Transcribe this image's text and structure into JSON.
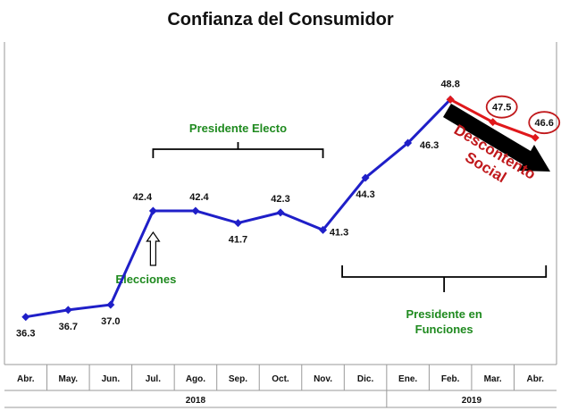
{
  "chart_data": {
    "type": "line",
    "title": "Confianza del Consumidor",
    "categories": [
      "Abr.",
      "May.",
      "Jun.",
      "Jul.",
      "Ago.",
      "Sep.",
      "Oct.",
      "Nov.",
      "Dic.",
      "Ene.",
      "Feb.",
      "Mar.",
      "Abr."
    ],
    "years": [
      {
        "label": "2018",
        "from": 0,
        "to": 8
      },
      {
        "label": "2019",
        "from": 9,
        "to": 12
      }
    ],
    "series": [
      {
        "color": "#1f1fc8",
        "values": [
          36.3,
          36.7,
          37.0,
          42.4,
          42.4,
          41.7,
          42.3,
          41.3,
          44.3,
          46.3,
          48.8,
          null,
          null
        ]
      },
      {
        "color": "#e0181b",
        "values": [
          null,
          null,
          null,
          null,
          null,
          null,
          null,
          null,
          null,
          null,
          48.8,
          47.5,
          46.6
        ]
      }
    ],
    "data_labels": [
      "36.3",
      "36.7",
      "37.0",
      "42.4",
      "42.4",
      "41.7",
      "42.3",
      "41.3",
      "44.3",
      "46.3",
      "48.8",
      "47.5",
      "46.6"
    ],
    "circled_labels": [
      11,
      12
    ],
    "ylim": [
      35,
      50
    ],
    "grid": false,
    "annotations": {
      "presidente_electo": {
        "text": "Presidente Electo",
        "from": 3,
        "to": 7
      },
      "elecciones": {
        "text": "Elecciones",
        "at": 3
      },
      "presidente_funciones": {
        "line1": "Presidente en",
        "line2": "Funciones",
        "from": 8,
        "to": 12
      },
      "descontento": {
        "line1": "Descontento",
        "line2": "Social"
      }
    }
  }
}
